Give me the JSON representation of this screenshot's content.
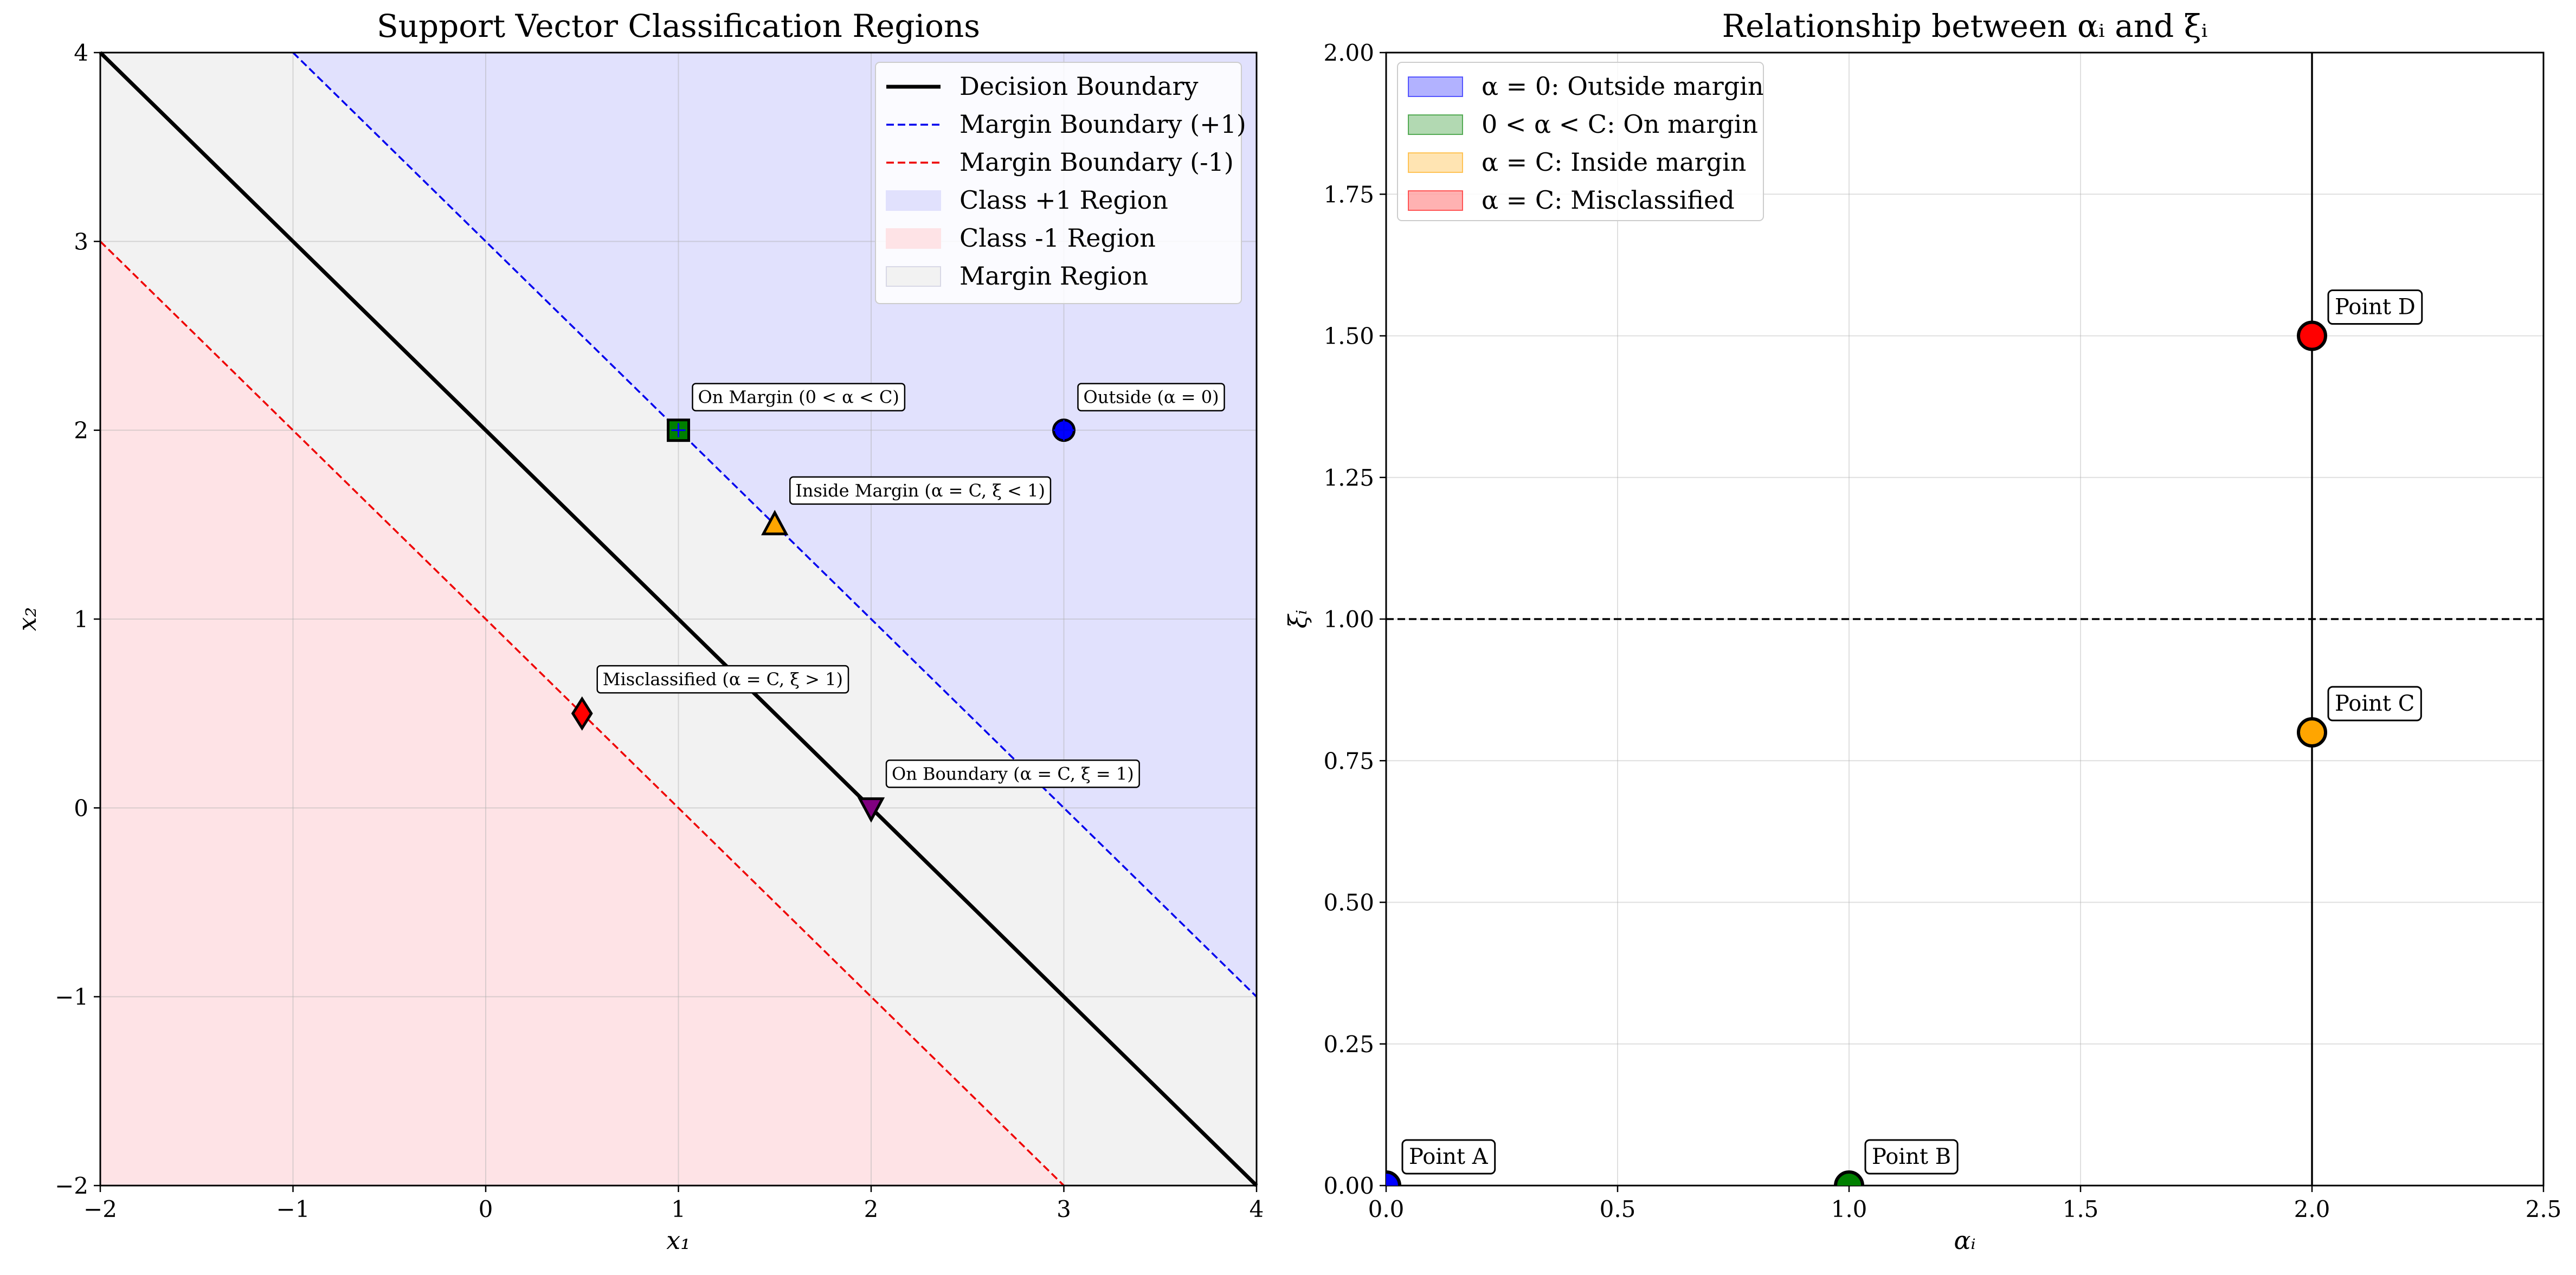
{
  "chart_data": [
    {
      "type": "scatter",
      "title": "Support Vector Classification Regions",
      "xlabel": "x₁",
      "ylabel": "x₂",
      "xlim": [
        -2,
        4
      ],
      "ylim": [
        -2,
        4
      ],
      "xticks": [
        -2,
        -1,
        0,
        1,
        2,
        3,
        4
      ],
      "yticks": [
        -2,
        -1,
        0,
        1,
        2,
        3,
        4
      ],
      "xtick_labels": [
        "−2",
        "−1",
        "0",
        "1",
        "2",
        "3",
        "4"
      ],
      "ytick_labels": [
        "−2",
        "−1",
        "0",
        "1",
        "2",
        "3",
        "4"
      ],
      "grid": true,
      "legend_position": "top-right",
      "lines": [
        {
          "name": "Decision Boundary",
          "points": [
            [
              -2,
              4
            ],
            [
              4,
              -2
            ]
          ],
          "color": "#000000",
          "style": "solid"
        },
        {
          "name": "Margin Boundary (+1)",
          "points": [
            [
              -1,
              4
            ],
            [
              4,
              -1
            ]
          ],
          "color": "#0000ee",
          "style": "dashed"
        },
        {
          "name": "Margin Boundary (-1)",
          "points": [
            [
              -2,
              3
            ],
            [
              3,
              -2
            ]
          ],
          "color": "#ee0000",
          "style": "dashed"
        }
      ],
      "regions": [
        {
          "name": "Class +1 Region",
          "color": "#e1e1fd"
        },
        {
          "name": "Class -1 Region",
          "color": "#fee3e6"
        },
        {
          "name": "Margin Region",
          "color": "#f2f2f2"
        }
      ],
      "points": [
        {
          "x": 1,
          "y": 2,
          "marker": "square",
          "color": "#008000",
          "label": "On Margin (0 < α < C)"
        },
        {
          "x": 3,
          "y": 2,
          "marker": "circle",
          "color": "#0000ff",
          "label": "Outside (α = 0)"
        },
        {
          "x": 1.5,
          "y": 1.5,
          "marker": "triangle-up",
          "color": "#ffa500",
          "label": "Inside Margin (α = C, ξ < 1)"
        },
        {
          "x": 0.5,
          "y": 0.5,
          "marker": "diamond",
          "color": "#ff0000",
          "label": "Misclassified (α = C, ξ > 1)"
        },
        {
          "x": 2,
          "y": 0,
          "marker": "triangle-down",
          "color": "#800080",
          "label": "On Boundary (α = C, ξ = 1)"
        }
      ]
    },
    {
      "type": "scatter",
      "title": "Relationship between αᵢ and ξᵢ",
      "xlabel": "αᵢ",
      "ylabel": "ξᵢ",
      "xlim": [
        0,
        2.5
      ],
      "ylim": [
        0,
        2
      ],
      "xticks": [
        0,
        0.5,
        1,
        1.5,
        2,
        2.5
      ],
      "yticks": [
        0,
        0.25,
        0.5,
        0.75,
        1,
        1.25,
        1.5,
        1.75,
        2
      ],
      "xtick_labels": [
        "0.0",
        "0.5",
        "1.0",
        "1.5",
        "2.0",
        "2.5"
      ],
      "ytick_labels": [
        "0.00",
        "0.25",
        "0.50",
        "0.75",
        "1.00",
        "1.25",
        "1.50",
        "1.75",
        "2.00"
      ],
      "grid": true,
      "legend_position": "top-left",
      "hline": {
        "y": 1,
        "style": "dashed",
        "color": "#000000"
      },
      "vline": {
        "x": 2,
        "style": "solid",
        "color": "#000000"
      },
      "legend": [
        {
          "label": "α = 0: Outside margin",
          "color": "#0000ff"
        },
        {
          "label": "0 < α < C: On margin",
          "color": "#008000"
        },
        {
          "label": "α = C: Inside margin",
          "color": "#ffa500"
        },
        {
          "label": "α = C: Misclassified",
          "color": "#ff0000"
        }
      ],
      "points": [
        {
          "name": "Point A",
          "x": 0,
          "y": 0,
          "color": "#0000ff"
        },
        {
          "name": "Point B",
          "x": 1,
          "y": 0,
          "color": "#008000"
        },
        {
          "name": "Point C",
          "x": 2,
          "y": 0.8,
          "color": "#ffa500"
        },
        {
          "name": "Point D",
          "x": 2,
          "y": 1.5,
          "color": "#ff0000"
        }
      ]
    }
  ]
}
